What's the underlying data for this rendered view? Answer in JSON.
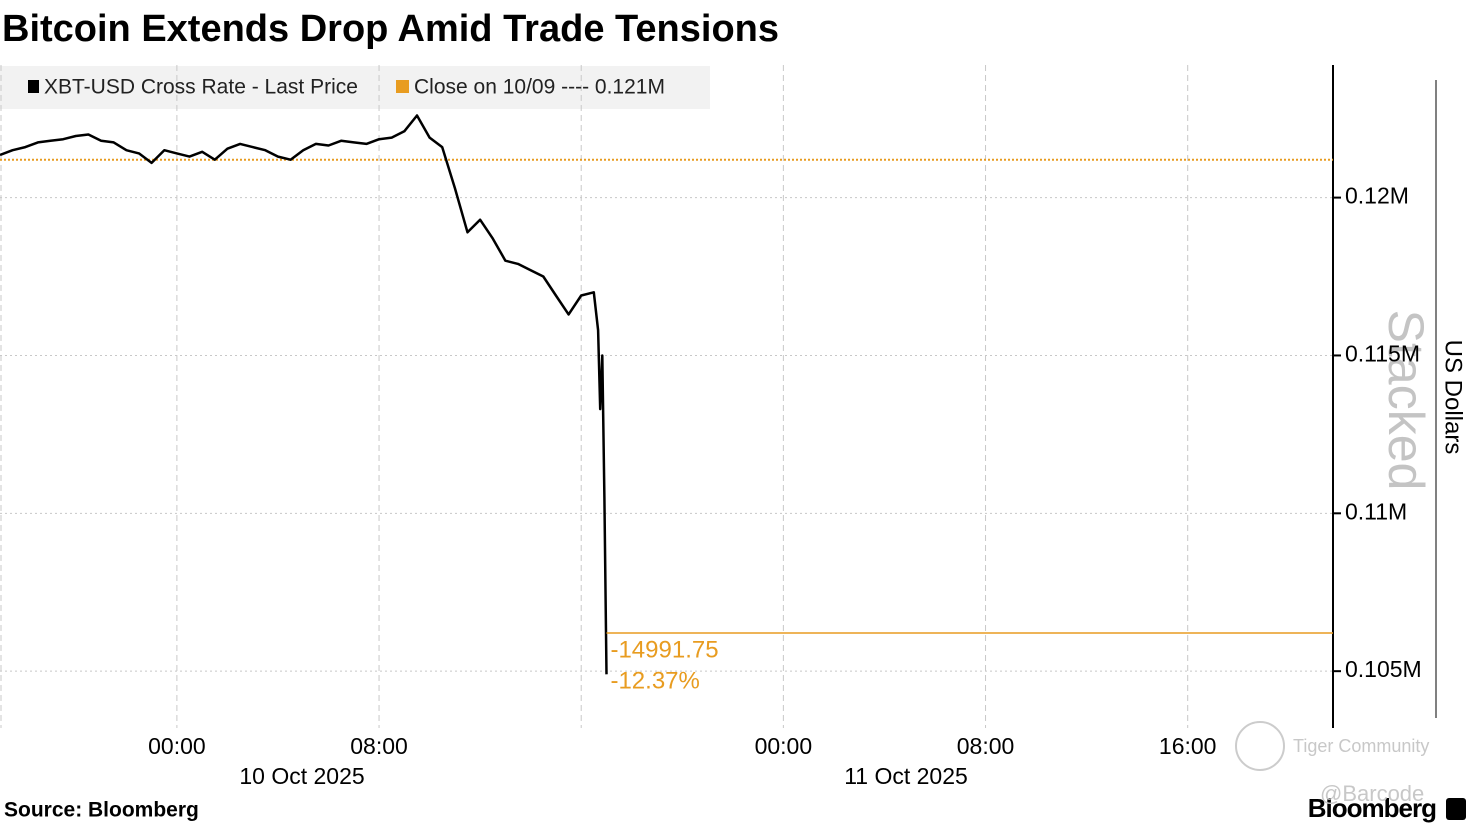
{
  "chart_data": {
    "type": "line",
    "title": "Bitcoin Extends Drop Amid Trade Tensions",
    "source": "Source: Bloomberg",
    "brand": "Bloomberg",
    "y_axis_label": "US Dollars",
    "watermarks": [
      "Stacked",
      "Tiger Community",
      "@Barcode"
    ],
    "x": [
      "2025-10-09T17:00",
      "2025-10-09T17:30",
      "2025-10-09T18:00",
      "2025-10-09T18:30",
      "2025-10-09T19:00",
      "2025-10-09T19:30",
      "2025-10-09T20:00",
      "2025-10-09T20:30",
      "2025-10-09T21:00",
      "2025-10-09T21:30",
      "2025-10-09T22:00",
      "2025-10-09T22:30",
      "2025-10-09T23:00",
      "2025-10-09T23:30",
      "2025-10-10T00:00",
      "2025-10-10T00:30",
      "2025-10-10T01:00",
      "2025-10-10T01:30",
      "2025-10-10T02:00",
      "2025-10-10T02:30",
      "2025-10-10T03:00",
      "2025-10-10T03:30",
      "2025-10-10T04:00",
      "2025-10-10T04:30",
      "2025-10-10T05:00",
      "2025-10-10T05:30",
      "2025-10-10T06:00",
      "2025-10-10T06:30",
      "2025-10-10T07:00",
      "2025-10-10T07:30",
      "2025-10-10T08:00",
      "2025-10-10T08:30",
      "2025-10-10T09:00",
      "2025-10-10T09:30",
      "2025-10-10T10:00",
      "2025-10-10T10:30",
      "2025-10-10T11:00",
      "2025-10-10T11:30",
      "2025-10-10T12:00",
      "2025-10-10T12:30",
      "2025-10-10T13:00",
      "2025-10-10T13:30",
      "2025-10-10T14:00",
      "2025-10-10T14:30",
      "2025-10-10T15:00",
      "2025-10-10T15:30",
      "2025-10-10T16:00",
      "2025-10-10T16:30",
      "2025-10-10T16:40",
      "2025-10-10T16:45",
      "2025-10-10T16:50",
      "2025-10-10T16:55",
      "2025-10-10T17:00"
    ],
    "series": [
      {
        "name": "XBT-USD Cross Rate - Last Price",
        "color": "#000000",
        "values": [
          121350,
          121500,
          121600,
          121750,
          121800,
          121850,
          121950,
          122000,
          121800,
          121750,
          121500,
          121400,
          121100,
          121500,
          121400,
          121300,
          121450,
          121200,
          121550,
          121700,
          121600,
          121500,
          121300,
          121200,
          121500,
          121700,
          121650,
          121800,
          121750,
          121700,
          121850,
          121900,
          122100,
          122600,
          121900,
          121600,
          120300,
          118900,
          119300,
          118700,
          118000,
          117900,
          117700,
          117500,
          116900,
          116300,
          116900,
          117000,
          115800,
          113300,
          115000,
          110500,
          104900
        ]
      }
    ],
    "reference_line": {
      "legend_label": "Close on 10/09 ---- 0.121M",
      "value": 121200,
      "color": "#e89c20"
    },
    "last_line": {
      "value": 106208.25,
      "color": "#e89c20"
    },
    "annotation": {
      "change": -14991.75,
      "change_pct": {
        "value": -12.37,
        "label": "-12.37%"
      }
    },
    "ylim": [
      103200,
      124200
    ],
    "yticks": [
      {
        "value": 105000,
        "label": "0.105M"
      },
      {
        "value": 110000,
        "label": "0.11M"
      },
      {
        "value": 115000,
        "label": "0.115M"
      },
      {
        "value": 120000,
        "label": "0.12M"
      }
    ],
    "xlim": [
      "2025-10-09T17:00",
      "2025-10-11T21:45"
    ],
    "xticks": [
      {
        "value": "2025-10-10T00:00",
        "label": "00:00"
      },
      {
        "value": "2025-10-10T08:00",
        "label": "08:00"
      },
      {
        "value": "2025-10-10T16:00",
        "label": null
      },
      {
        "value": "2025-10-11T00:00",
        "label": "00:00"
      },
      {
        "value": "2025-10-11T08:00",
        "label": "08:00"
      },
      {
        "value": "2025-10-11T16:00",
        "label": "16:00"
      }
    ],
    "x_date_labels": [
      "10 Oct 2025",
      "11 Oct 2025"
    ],
    "grid": true
  }
}
